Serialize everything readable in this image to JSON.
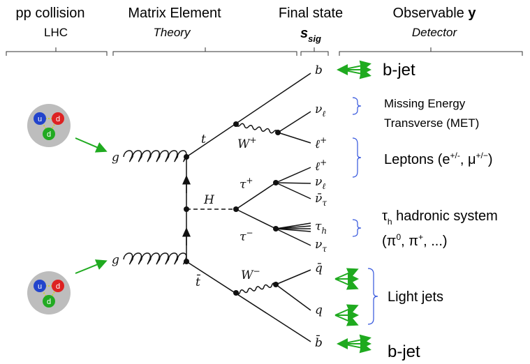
{
  "header": {
    "columns": [
      {
        "title": "pp collision",
        "subtitle": "LHC"
      },
      {
        "title": "Matrix Element",
        "subtitle": "Theory"
      },
      {
        "title": "Final state",
        "symbol": "s",
        "symbol_sub": "sig"
      },
      {
        "title": "Observable ",
        "title_bold": "y",
        "subtitle": "Detector"
      }
    ]
  },
  "protons": [
    {
      "quarks": [
        "u",
        "d",
        "d"
      ]
    },
    {
      "quarks": [
        "u",
        "d",
        "d"
      ]
    }
  ],
  "feynman": {
    "g_top": {
      "text": "g"
    },
    "g_bottom": {
      "text": "g"
    },
    "t": {
      "text": "t"
    },
    "tbar": {
      "text": "t̄"
    },
    "H": {
      "text": "H"
    },
    "w_plus": {
      "text": "W",
      "sup": "+"
    },
    "w_minus": {
      "text": "W",
      "sup": "−"
    },
    "tau_plus": {
      "text": "τ",
      "sup": "+"
    },
    "tau_minus": {
      "text": "τ",
      "sup": "−"
    },
    "b": {
      "text": "b"
    },
    "nu_l_top": {
      "text": "ν",
      "sub": "ℓ"
    },
    "l_plus_top": {
      "text": "ℓ",
      "sup": "+"
    },
    "l_plus_mid": {
      "text": "ℓ",
      "sup": "+"
    },
    "nu_l_mid": {
      "text": "ν",
      "sub": "ℓ"
    },
    "nubar_tau": {
      "text": "ν̄",
      "sub": "τ"
    },
    "tau_h": {
      "text": "τ",
      "sub": "h"
    },
    "nu_tau": {
      "text": "ν",
      "sub": "τ"
    },
    "qbar": {
      "text": "q̄"
    },
    "q": {
      "text": "q"
    },
    "bbar": {
      "text": "b̄"
    }
  },
  "observables": {
    "bjet_top": "b-jet",
    "met": [
      "Missing Energy",
      "Transverse (MET)"
    ],
    "leptons": {
      "text": "Leptons (e",
      "sup1": "+/-",
      "mid": ", μ",
      "sup2": "+/−",
      "end": ")"
    },
    "tau_h": {
      "symbol": "τ",
      "sub": "h",
      "text": " hadronic system",
      "line2": "(π",
      "sup1": "0",
      "mid": ", π",
      "sup2": "+",
      "end": ", ...)"
    },
    "light_jets": "Light jets",
    "bjet_bottom": "b-jet"
  }
}
